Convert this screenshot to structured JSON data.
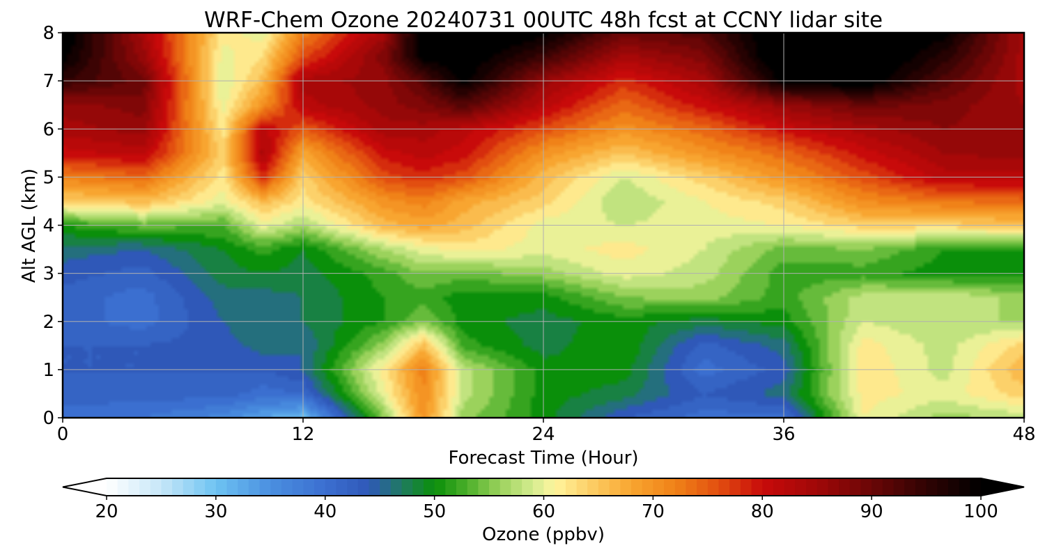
{
  "chart_data": {
    "type": "heatmap",
    "title": "WRF-Chem Ozone  20240731 00UTC 48h fcst at CCNY lidar site",
    "xlabel": "Forecast Time (Hour)",
    "ylabel": "Alt AGL (km)",
    "xlim": [
      0,
      48
    ],
    "ylim": [
      0,
      8
    ],
    "xticks": [
      0,
      12,
      24,
      36,
      48
    ],
    "yticks": [
      0,
      1,
      2,
      3,
      4,
      5,
      6,
      7,
      8
    ],
    "grid": true,
    "x": [
      0,
      4,
      8,
      10,
      12,
      16,
      18,
      20,
      24,
      28,
      32,
      36,
      40,
      44,
      48
    ],
    "y": [
      0,
      0.5,
      1,
      1.5,
      2,
      2.5,
      3,
      3.5,
      4,
      4.5,
      5,
      5.5,
      6,
      6.5,
      7,
      7.5,
      8
    ],
    "z": [
      [
        40,
        39,
        36,
        33,
        30,
        55,
        70,
        56,
        50,
        43,
        40,
        40,
        61,
        56,
        58
      ],
      [
        42,
        42,
        42,
        40,
        41,
        60,
        71,
        58,
        50,
        48,
        43,
        46,
        62,
        60,
        64
      ],
      [
        43,
        43,
        43,
        43,
        45,
        62,
        72,
        58,
        50,
        50,
        40,
        44,
        63,
        58,
        67
      ],
      [
        43,
        43,
        44,
        46,
        45,
        56,
        66,
        52,
        48,
        51,
        42,
        46,
        62,
        58,
        64
      ],
      [
        42,
        40,
        45,
        47,
        47,
        51,
        55,
        50,
        48,
        50,
        48,
        50,
        59,
        57,
        57
      ],
      [
        42,
        40,
        46,
        46,
        47,
        51,
        52,
        50,
        50,
        55,
        56,
        52,
        58,
        59,
        56
      ],
      [
        44,
        42,
        48,
        49,
        48,
        52,
        55,
        54,
        56,
        60,
        58,
        52,
        52,
        50,
        50
      ],
      [
        46,
        45,
        49,
        52,
        49,
        57,
        60,
        62,
        60,
        62,
        59,
        54,
        55,
        51,
        51
      ],
      [
        51,
        54,
        53,
        60,
        57,
        66,
        68,
        66,
        60,
        59,
        60,
        61,
        64,
        64,
        65
      ],
      [
        64,
        66,
        60,
        66,
        62,
        70,
        72,
        68,
        64,
        57,
        61,
        64,
        71,
        73,
        74
      ],
      [
        72,
        74,
        62,
        78,
        64,
        76,
        78,
        76,
        66,
        59,
        64,
        70,
        76,
        82,
        82
      ],
      [
        80,
        82,
        64,
        84,
        68,
        80,
        82,
        80,
        70,
        65,
        70,
        74,
        80,
        85,
        86
      ],
      [
        84,
        86,
        62,
        82,
        75,
        84,
        84,
        82,
        76,
        70,
        74,
        80,
        84,
        87,
        86
      ],
      [
        86,
        88,
        60,
        70,
        82,
        86,
        88,
        92,
        82,
        74,
        80,
        86,
        90,
        88,
        85
      ],
      [
        95,
        90,
        59,
        66,
        84,
        86,
        92,
        100,
        86,
        78,
        84,
        100,
        102,
        92,
        84
      ],
      [
        100,
        86,
        60,
        63,
        76,
        88,
        100,
        102,
        94,
        84,
        88,
        104,
        104,
        96,
        84
      ],
      [
        102,
        84,
        62,
        60,
        72,
        84,
        102,
        104,
        100,
        90,
        92,
        104,
        104,
        100,
        84
      ]
    ],
    "colorbar": {
      "label": "Ozone  (ppbv)",
      "ticks": [
        20,
        30,
        40,
        50,
        60,
        70,
        80,
        90,
        100
      ],
      "range": [
        20,
        100
      ],
      "extend": "both",
      "colors": [
        {
          "v": 20,
          "c": "#ffffff"
        },
        {
          "v": 25,
          "c": "#c6e6f8"
        },
        {
          "v": 30,
          "c": "#6ec3f2"
        },
        {
          "v": 35,
          "c": "#4a8fe0"
        },
        {
          "v": 40,
          "c": "#3b6fd0"
        },
        {
          "v": 44,
          "c": "#2f58b8"
        },
        {
          "v": 47,
          "c": "#1f7a60"
        },
        {
          "v": 50,
          "c": "#0a8f0a"
        },
        {
          "v": 53,
          "c": "#4caf2a"
        },
        {
          "v": 56,
          "c": "#9bd25c"
        },
        {
          "v": 59,
          "c": "#d4ec90"
        },
        {
          "v": 61,
          "c": "#fff59e"
        },
        {
          "v": 64,
          "c": "#fcd16a"
        },
        {
          "v": 68,
          "c": "#f8a530"
        },
        {
          "v": 72,
          "c": "#f08218"
        },
        {
          "v": 76,
          "c": "#e24e10"
        },
        {
          "v": 80,
          "c": "#c80a0a"
        },
        {
          "v": 85,
          "c": "#a00808"
        },
        {
          "v": 90,
          "c": "#6a0606"
        },
        {
          "v": 95,
          "c": "#300303"
        },
        {
          "v": 100,
          "c": "#000000"
        }
      ]
    }
  }
}
